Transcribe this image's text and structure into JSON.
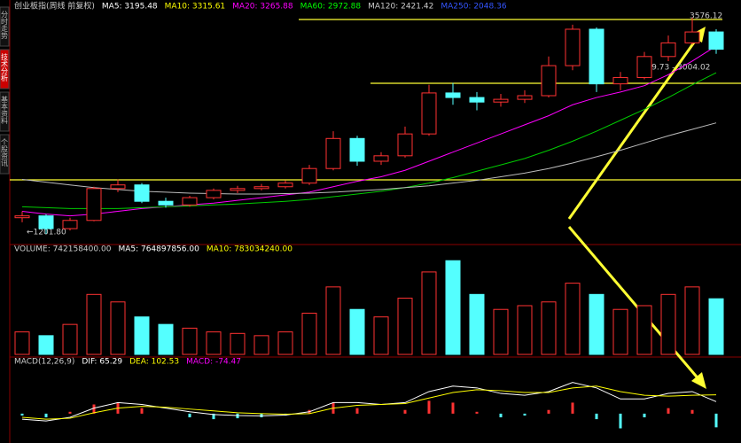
{
  "sidebar": {
    "tabs": [
      "分时走势",
      "技术分析",
      "基本资料",
      "个股资讯"
    ],
    "active": 1
  },
  "chart_data": [
    {
      "type": "candlestick",
      "legend": [
        {
          "text": "创业板指(周线 前复权)",
          "color": "#cccccc"
        },
        {
          "text": "MA5: 3195.48",
          "color": "#ffffff"
        },
        {
          "text": "MA10: 3315.61",
          "color": "#ffff00"
        },
        {
          "text": "MA20: 3265.88",
          "color": "#ff00ff"
        },
        {
          "text": "MA60: 2972.88",
          "color": "#00ff00"
        },
        {
          "text": "MA120: 2421.42",
          "color": "#cccccc"
        },
        {
          "text": "MA250: 2048.36",
          "color": "#3355ff"
        }
      ],
      "up_color": "#ff3232",
      "down_color": "#54ffff",
      "open": [
        1380,
        1400,
        1260,
        1350,
        1700,
        1740,
        1560,
        1520,
        1600,
        1680,
        1700,
        1720,
        1760,
        1920,
        2250,
        2000,
        2060,
        2300,
        2750,
        2700,
        2650,
        2680,
        2720,
        3050,
        3450,
        2850,
        2920,
        3150,
        3300,
        3420
      ],
      "high": [
        1450,
        1420,
        1380,
        1720,
        1800,
        1760,
        1600,
        1620,
        1700,
        1730,
        1750,
        1790,
        1960,
        2330,
        2280,
        2100,
        2380,
        2840,
        2860,
        2760,
        2740,
        2780,
        3150,
        3500,
        3470,
        2980,
        3200,
        3380,
        3576.12,
        3450
      ],
      "low": [
        1330,
        1201.8,
        1240,
        1340,
        1660,
        1540,
        1490,
        1500,
        1580,
        1650,
        1680,
        1700,
        1740,
        1900,
        1950,
        1960,
        2040,
        2280,
        2620,
        2560,
        2600,
        2640,
        2700,
        3000,
        2760,
        2780,
        2900,
        3100,
        3280,
        3180
      ],
      "close": [
        1400,
        1260,
        1350,
        1700,
        1740,
        1560,
        1520,
        1600,
        1680,
        1700,
        1720,
        1760,
        1920,
        2250,
        2000,
        2060,
        2300,
        2750,
        2700,
        2650,
        2680,
        2720,
        3050,
        3450,
        2850,
        2920,
        3150,
        3300,
        3420,
        3230
      ],
      "series": [
        {
          "color": "#ff00ff",
          "values": [
            1450,
            1420,
            1400,
            1420,
            1450,
            1480,
            1500,
            1520,
            1540,
            1570,
            1600,
            1630,
            1660,
            1720,
            1780,
            1830,
            1900,
            2000,
            2100,
            2200,
            2300,
            2400,
            2500,
            2620,
            2700,
            2760,
            2830,
            2950,
            3100,
            3265.88
          ]
        },
        {
          "color": "#00cc00",
          "values": [
            1500,
            1490,
            1480,
            1480,
            1480,
            1490,
            1500,
            1510,
            1520,
            1530,
            1545,
            1560,
            1580,
            1610,
            1640,
            1670,
            1710,
            1760,
            1820,
            1890,
            1960,
            2030,
            2120,
            2220,
            2330,
            2450,
            2570,
            2700,
            2840,
            2972.88
          ]
        },
        {
          "color": "#bbbbbb",
          "values": [
            1800,
            1770,
            1740,
            1710,
            1690,
            1670,
            1660,
            1650,
            1645,
            1640,
            1640,
            1645,
            1650,
            1660,
            1675,
            1690,
            1710,
            1730,
            1760,
            1790,
            1830,
            1870,
            1920,
            1980,
            2050,
            2120,
            2200,
            2280,
            2350,
            2421.42
          ]
        }
      ],
      "annotations": [
        "3576.12",
        "←1201.80",
        "2829.73 - 3004.02"
      ],
      "ylim": [
        1124,
        3625
      ]
    },
    {
      "type": "bar",
      "legend": [
        {
          "text": "VOLUME: 742158400.00",
          "color": "#cccccc"
        },
        {
          "text": "MA5: 764897856.00",
          "color": "#ffffff"
        },
        {
          "text": "MA10: 783034240.00",
          "color": "#ffff00"
        }
      ],
      "values": [
        300000000,
        250000000,
        400000000,
        800000000,
        700000000,
        500000000,
        400000000,
        350000000,
        300000000,
        280000000,
        250000000,
        300000000,
        550000000,
        900000000,
        600000000,
        500000000,
        750000000,
        1100000000,
        1250000000,
        800000000,
        600000000,
        650000000,
        700000000,
        950000000,
        800000000,
        600000000,
        650000000,
        800000000,
        900000000,
        742158400
      ],
      "ylim": [
        0,
        1300000000
      ]
    },
    {
      "type": "macd",
      "legend": [
        {
          "text": "MACD(12,26,9)",
          "color": "#cccccc"
        },
        {
          "text": "DIF: 65.29",
          "color": "#ffffff"
        },
        {
          "text": "DEA: 102.53",
          "color": "#ffff00"
        },
        {
          "text": "MACD: -74.47",
          "color": "#ff00ff"
        }
      ],
      "histogram": [
        -10,
        -20,
        10,
        50,
        60,
        30,
        0,
        -20,
        -30,
        -25,
        -20,
        -10,
        20,
        60,
        30,
        0,
        20,
        70,
        60,
        10,
        -20,
        -10,
        20,
        60,
        -30,
        -80,
        -20,
        30,
        20,
        -74.47
      ],
      "series": [
        {
          "color": "#ffffff",
          "values": [
            -30,
            -40,
            -20,
            30,
            60,
            50,
            30,
            10,
            -5,
            -10,
            -12,
            -8,
            10,
            60,
            60,
            50,
            60,
            120,
            150,
            140,
            110,
            100,
            120,
            170,
            140,
            80,
            80,
            110,
            120,
            65.29
          ]
        },
        {
          "color": "#ffff00",
          "values": [
            -20,
            -30,
            -25,
            5,
            30,
            40,
            35,
            25,
            15,
            5,
            0,
            -3,
            0,
            30,
            45,
            50,
            55,
            85,
            115,
            130,
            125,
            115,
            115,
            140,
            150,
            120,
            100,
            95,
            100,
            102.53
          ]
        }
      ],
      "ylim": [
        -150,
        250
      ]
    }
  ]
}
